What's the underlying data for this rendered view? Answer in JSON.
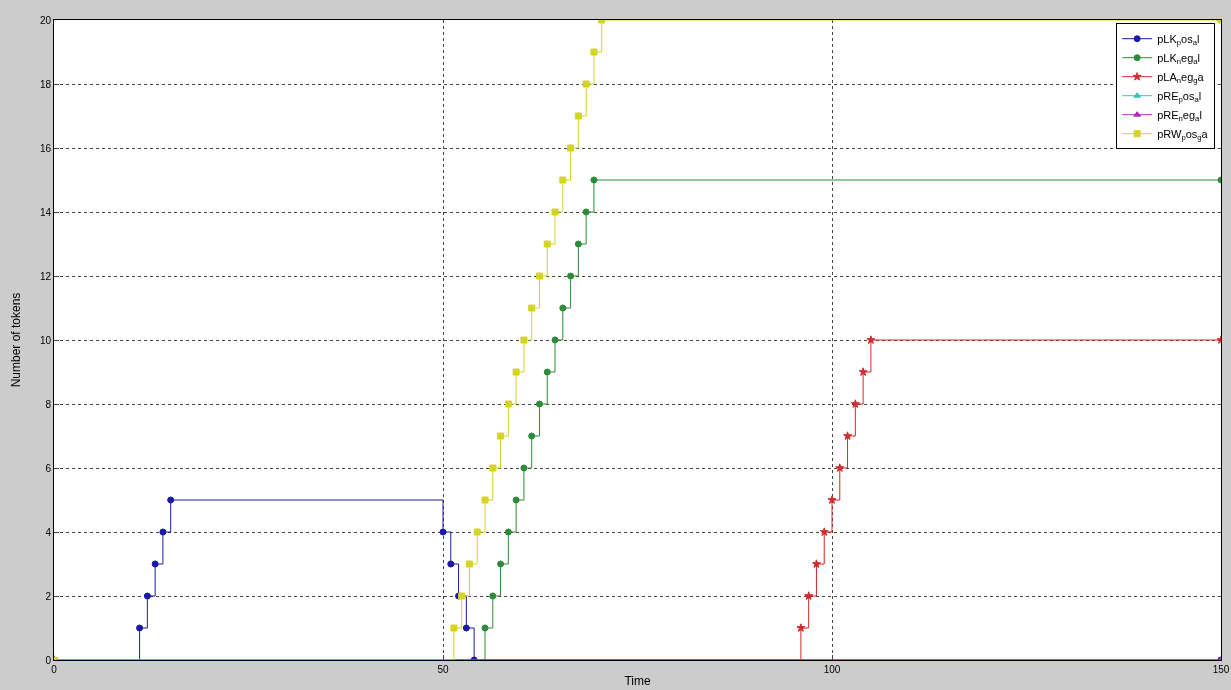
{
  "chart_data": {
    "type": "step",
    "xlabel": "Time",
    "ylabel": "Number of tokens",
    "xlim": [
      0,
      150
    ],
    "ylim": [
      0,
      20
    ],
    "xticks": [
      0,
      50,
      100,
      150
    ],
    "yticks": [
      0,
      2,
      4,
      6,
      8,
      10,
      12,
      14,
      16,
      18,
      20
    ],
    "grid": true,
    "legend": "top right",
    "line_style": "solid",
    "series": [
      {
        "name": "pLK$_{p}$os$_{a}$l",
        "color": "#1a1aa6",
        "marker": "circle",
        "x": [
          0,
          11,
          12,
          13,
          14,
          15,
          50,
          51,
          52,
          53,
          54,
          150
        ],
        "values": [
          0,
          1,
          2,
          3,
          4,
          5,
          4,
          3,
          2,
          1,
          0,
          0
        ]
      },
      {
        "name": "pLK$_{n}$eg$_{a}$l",
        "color": "#2e8b3a",
        "marker": "circle",
        "x": [
          0,
          55.4,
          56.4,
          57.4,
          58.4,
          59.4,
          60.4,
          61.4,
          62.4,
          63.4,
          64.4,
          65.4,
          66.4,
          67.4,
          68.4,
          69.4,
          150
        ],
        "values": [
          0,
          1,
          2,
          3,
          4,
          5,
          6,
          7,
          8,
          9,
          10,
          11,
          12,
          13,
          14,
          15,
          15
        ]
      },
      {
        "name": "pLA$_{n}$eg$_{g}$a",
        "color": "#d42a2a",
        "marker": "star",
        "x": [
          0,
          96,
          97,
          98,
          99,
          100,
          101,
          102,
          103,
          104,
          105,
          150
        ],
        "values": [
          0,
          1,
          2,
          3,
          4,
          5,
          6,
          7,
          8,
          9,
          10,
          10
        ]
      },
      {
        "name": "pRE$_{p}$os$_{a}$l",
        "color": "#3cc0c0",
        "marker": "triangle",
        "values": [
          null
        ]
      },
      {
        "name": "pRE$_{n}$eg$_{a}$l",
        "color": "#b82ab8",
        "marker": "triangle",
        "x": [
          0,
          150
        ],
        "values": [
          0,
          0
        ]
      },
      {
        "name": "pRW$_{p}$os$_{g}$a",
        "color": "#d4d424",
        "marker": "square",
        "x": [
          0,
          51.4,
          52.4,
          53.4,
          54.4,
          55.4,
          56.4,
          57.4,
          58.4,
          59.4,
          60.4,
          61.4,
          62.4,
          63.4,
          64.4,
          65.4,
          66.4,
          67.4,
          68.4,
          69.4,
          70.4,
          150
        ],
        "values": [
          0,
          1,
          2,
          3,
          4,
          5,
          6,
          7,
          8,
          9,
          10,
          11,
          12,
          13,
          14,
          15,
          16,
          17,
          18,
          19,
          20,
          20
        ]
      }
    ]
  }
}
